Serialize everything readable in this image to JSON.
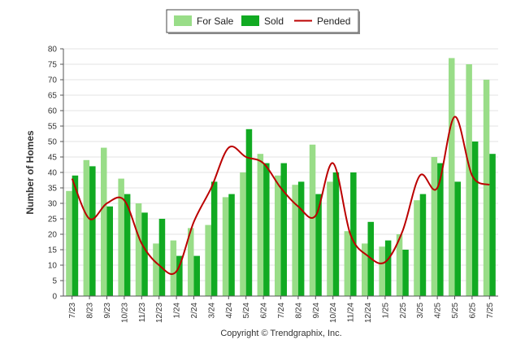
{
  "chart_data": {
    "type": "bar",
    "ylabel": "Number of Homes",
    "ylim": [
      0,
      80
    ],
    "yticks": [
      0,
      5,
      10,
      15,
      20,
      25,
      30,
      35,
      40,
      45,
      50,
      55,
      60,
      65,
      70,
      75,
      80
    ],
    "grid": true,
    "legend_position": "top-center",
    "categories": [
      "7/23",
      "8/23",
      "9/23",
      "10/23",
      "11/23",
      "12/23",
      "1/24",
      "2/24",
      "3/24",
      "4/24",
      "5/24",
      "6/24",
      "7/24",
      "8/24",
      "9/24",
      "10/24",
      "11/24",
      "12/24",
      "1/25",
      "2/25",
      "3/25",
      "4/25",
      "5/25",
      "6/25",
      "7/25"
    ],
    "series": [
      {
        "name": "For Sale",
        "kind": "bar",
        "color": "#99dd88",
        "values": [
          34,
          44,
          48,
          38,
          30,
          17,
          18,
          22,
          23,
          32,
          40,
          46,
          39,
          36,
          49,
          37,
          21,
          17,
          16,
          20,
          31,
          45,
          77,
          75,
          70
        ]
      },
      {
        "name": "Sold",
        "kind": "bar",
        "color": "#11aa22",
        "values": [
          39,
          42,
          29,
          33,
          27,
          25,
          13,
          13,
          37,
          33,
          54,
          43,
          43,
          37,
          33,
          40,
          40,
          24,
          18,
          15,
          33,
          43,
          37,
          50,
          46
        ]
      },
      {
        "name": "Pended",
        "kind": "line",
        "color": "#bb0000",
        "values": [
          38,
          25,
          30,
          31,
          17,
          10,
          8,
          24,
          35,
          48,
          45,
          43,
          35,
          29,
          26,
          43,
          20,
          13,
          11,
          21,
          39,
          35,
          58,
          39,
          36
        ]
      }
    ],
    "footer": "Copyright © Trendgraphix, Inc."
  }
}
